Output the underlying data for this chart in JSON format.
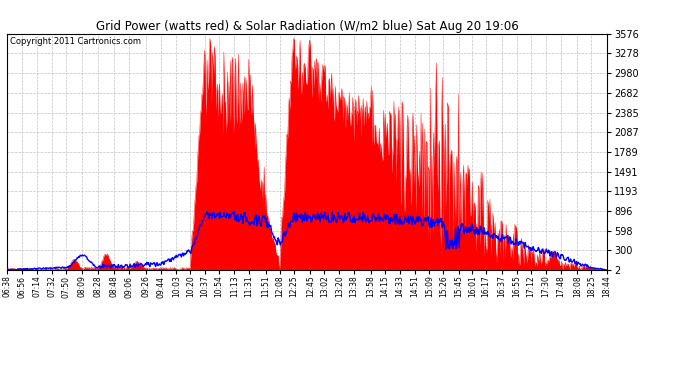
{
  "title": "Grid Power (watts red) & Solar Radiation (W/m2 blue) Sat Aug 20 19:06",
  "copyright": "Copyright 2011 Cartronics.com",
  "yticks": [
    2.3,
    300.1,
    597.9,
    895.6,
    1193.4,
    1491.2,
    1789.0,
    2086.8,
    2384.6,
    2682.4,
    2980.2,
    3278.0,
    3575.8
  ],
  "ymin": 2.3,
  "ymax": 3575.8,
  "bg_color": "#ffffff",
  "plot_bg_color": "#ffffff",
  "grid_color": "#bbbbbb",
  "fill_color": "red",
  "line_color": "blue",
  "xtick_labels": [
    "06:38",
    "06:56",
    "07:14",
    "07:32",
    "07:50",
    "08:09",
    "08:28",
    "08:48",
    "09:06",
    "09:26",
    "09:44",
    "10:03",
    "10:20",
    "10:37",
    "10:54",
    "11:13",
    "11:31",
    "11:51",
    "12:08",
    "12:25",
    "12:45",
    "13:02",
    "13:20",
    "13:38",
    "13:58",
    "14:15",
    "14:33",
    "14:51",
    "15:09",
    "15:26",
    "15:45",
    "16:01",
    "16:17",
    "16:37",
    "16:55",
    "17:12",
    "17:30",
    "17:48",
    "18:08",
    "18:25",
    "18:44"
  ],
  "n_points": 820
}
